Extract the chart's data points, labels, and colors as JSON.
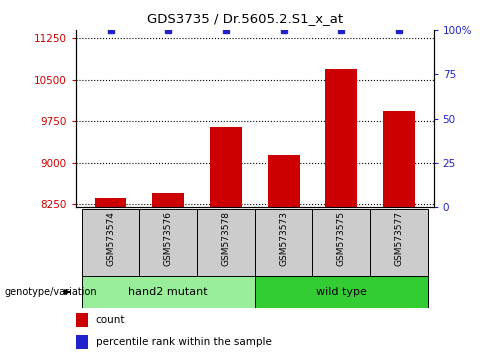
{
  "title": "GDS3735 / Dr.5605.2.S1_x_at",
  "samples": [
    "GSM573574",
    "GSM573576",
    "GSM573578",
    "GSM573573",
    "GSM573575",
    "GSM573577"
  ],
  "counts": [
    8370,
    8455,
    9645,
    9145,
    10700,
    9940
  ],
  "percentile_ranks": [
    100,
    100,
    100,
    100,
    100,
    100
  ],
  "ylim_left": [
    8200,
    11400
  ],
  "ylim_right": [
    0,
    100
  ],
  "yticks_left": [
    8250,
    9000,
    9750,
    10500,
    11250
  ],
  "yticks_right": [
    0,
    25,
    50,
    75,
    100
  ],
  "ytick_labels_right": [
    "0",
    "25",
    "50",
    "75",
    "100%"
  ],
  "bar_color": "#cc0000",
  "dot_color": "#2222cc",
  "bar_width": 0.55,
  "groups": [
    {
      "label": "hand2 mutant",
      "indices": [
        0,
        1,
        2
      ],
      "color": "#99ee99"
    },
    {
      "label": "wild type",
      "indices": [
        3,
        4,
        5
      ],
      "color": "#33cc33"
    }
  ],
  "group_label": "genotype/variation",
  "legend_count_label": "count",
  "legend_percentile_label": "percentile rank within the sample",
  "axis_label_color_left": "#cc0000",
  "axis_label_color_right": "#2222cc",
  "sample_box_color": "#cccccc",
  "figure_bg": "#ffffff"
}
